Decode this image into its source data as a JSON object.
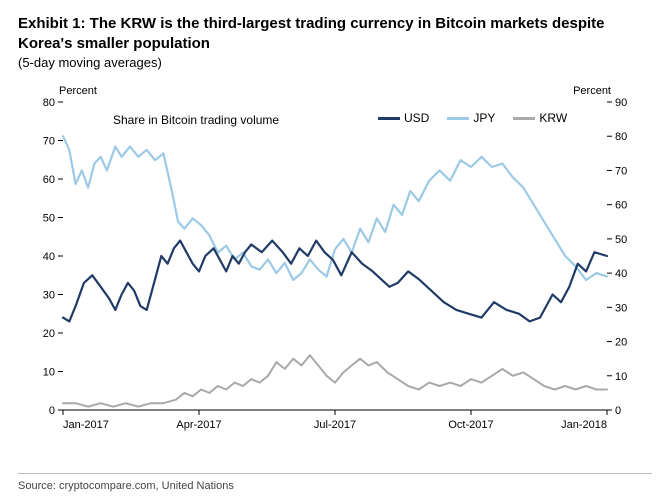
{
  "exhibit": {
    "title": "Exhibit 1: The KRW is the third-largest trading currency in Bitcoin markets despite Korea's smaller population",
    "subtitle": "(5-day moving averages)",
    "source": "Source: cryptocompare.com, United Nations"
  },
  "chart": {
    "type": "line",
    "background_color": "#ffffff",
    "grid_color": "#d9d9d9",
    "axis_color": "#000000",
    "left_axis": {
      "label": "Percent",
      "min": 0,
      "max": 80,
      "step": 10
    },
    "right_axis": {
      "label": "Percent",
      "min": 0,
      "max": 90,
      "step": 10
    },
    "x_axis": {
      "labels": [
        "Jan-2017",
        "Apr-2017",
        "Jul-2017",
        "Oct-2017",
        "Jan-2018"
      ]
    },
    "inside_label": "Share in Bitcoin trading volume",
    "legend": {
      "items": [
        {
          "key": "USD",
          "color": "#1f3b66"
        },
        {
          "key": "JPY",
          "color": "#9cc9e6"
        },
        {
          "key": "KRW",
          "color": "#a9a9a9"
        }
      ]
    },
    "series": {
      "USD": {
        "axis": "left",
        "color": "#1f3b66",
        "line_width": 2.2,
        "points": [
          [
            0,
            24
          ],
          [
            3,
            23
          ],
          [
            6,
            27
          ],
          [
            10,
            33
          ],
          [
            14,
            35
          ],
          [
            18,
            32
          ],
          [
            22,
            29
          ],
          [
            25,
            26
          ],
          [
            28,
            30
          ],
          [
            31,
            33
          ],
          [
            34,
            31
          ],
          [
            37,
            27
          ],
          [
            40,
            26
          ],
          [
            43,
            32
          ],
          [
            47,
            40
          ],
          [
            50,
            38
          ],
          [
            53,
            42
          ],
          [
            56,
            44
          ],
          [
            59,
            41
          ],
          [
            62,
            38
          ],
          [
            65,
            36
          ],
          [
            68,
            40
          ],
          [
            72,
            42
          ],
          [
            75,
            39
          ],
          [
            78,
            36
          ],
          [
            81,
            40
          ],
          [
            84,
            38
          ],
          [
            87,
            41
          ],
          [
            90,
            43
          ],
          [
            95,
            41
          ],
          [
            100,
            44
          ],
          [
            105,
            41
          ],
          [
            109,
            38
          ],
          [
            113,
            42
          ],
          [
            117,
            40
          ],
          [
            121,
            44
          ],
          [
            125,
            41
          ],
          [
            129,
            39
          ],
          [
            133,
            35
          ],
          [
            138,
            41
          ],
          [
            143,
            38
          ],
          [
            148,
            36
          ],
          [
            152,
            34
          ],
          [
            156,
            32
          ],
          [
            160,
            33
          ],
          [
            165,
            36
          ],
          [
            170,
            34
          ],
          [
            176,
            31
          ],
          [
            182,
            28
          ],
          [
            188,
            26
          ],
          [
            194,
            25
          ],
          [
            200,
            24
          ],
          [
            206,
            28
          ],
          [
            212,
            26
          ],
          [
            218,
            25
          ],
          [
            223,
            23
          ],
          [
            228,
            24
          ],
          [
            234,
            30
          ],
          [
            238,
            28
          ],
          [
            242,
            32
          ],
          [
            246,
            38
          ],
          [
            250,
            36
          ],
          [
            254,
            41
          ],
          [
            260,
            40
          ]
        ]
      },
      "JPY": {
        "axis": "right",
        "color": "#9cc9e6",
        "line_width": 2.2,
        "points": [
          [
            0,
            80
          ],
          [
            3,
            76
          ],
          [
            6,
            66
          ],
          [
            9,
            70
          ],
          [
            12,
            65
          ],
          [
            15,
            72
          ],
          [
            18,
            74
          ],
          [
            21,
            70
          ],
          [
            25,
            77
          ],
          [
            28,
            74
          ],
          [
            32,
            77
          ],
          [
            36,
            74
          ],
          [
            40,
            76
          ],
          [
            44,
            73
          ],
          [
            48,
            75
          ],
          [
            52,
            64
          ],
          [
            55,
            55
          ],
          [
            58,
            53
          ],
          [
            62,
            56
          ],
          [
            66,
            54
          ],
          [
            70,
            51
          ],
          [
            74,
            46
          ],
          [
            78,
            48
          ],
          [
            82,
            44
          ],
          [
            86,
            46
          ],
          [
            90,
            42
          ],
          [
            94,
            41
          ],
          [
            98,
            44
          ],
          [
            102,
            40
          ],
          [
            106,
            43
          ],
          [
            110,
            38
          ],
          [
            114,
            40
          ],
          [
            118,
            44
          ],
          [
            122,
            41
          ],
          [
            126,
            39
          ],
          [
            130,
            47
          ],
          [
            134,
            50
          ],
          [
            138,
            46
          ],
          [
            142,
            53
          ],
          [
            146,
            49
          ],
          [
            150,
            56
          ],
          [
            154,
            52
          ],
          [
            158,
            60
          ],
          [
            162,
            57
          ],
          [
            166,
            64
          ],
          [
            170,
            61
          ],
          [
            175,
            67
          ],
          [
            180,
            70
          ],
          [
            185,
            67
          ],
          [
            190,
            73
          ],
          [
            195,
            71
          ],
          [
            200,
            74
          ],
          [
            205,
            71
          ],
          [
            210,
            72
          ],
          [
            215,
            68
          ],
          [
            220,
            65
          ],
          [
            225,
            60
          ],
          [
            230,
            55
          ],
          [
            235,
            50
          ],
          [
            240,
            45
          ],
          [
            245,
            42
          ],
          [
            250,
            38
          ],
          [
            255,
            40
          ],
          [
            260,
            39
          ]
        ]
      },
      "KRW": {
        "axis": "right",
        "color": "#a9a9a9",
        "line_width": 2.0,
        "points": [
          [
            0,
            2
          ],
          [
            6,
            2
          ],
          [
            12,
            1
          ],
          [
            18,
            2
          ],
          [
            24,
            1
          ],
          [
            30,
            2
          ],
          [
            36,
            1
          ],
          [
            42,
            2
          ],
          [
            48,
            2
          ],
          [
            54,
            3
          ],
          [
            58,
            5
          ],
          [
            62,
            4
          ],
          [
            66,
            6
          ],
          [
            70,
            5
          ],
          [
            74,
            7
          ],
          [
            78,
            6
          ],
          [
            82,
            8
          ],
          [
            86,
            7
          ],
          [
            90,
            9
          ],
          [
            94,
            8
          ],
          [
            98,
            10
          ],
          [
            102,
            14
          ],
          [
            106,
            12
          ],
          [
            110,
            15
          ],
          [
            114,
            13
          ],
          [
            118,
            16
          ],
          [
            122,
            13
          ],
          [
            126,
            10
          ],
          [
            130,
            8
          ],
          [
            134,
            11
          ],
          [
            138,
            13
          ],
          [
            142,
            15
          ],
          [
            146,
            13
          ],
          [
            150,
            14
          ],
          [
            155,
            11
          ],
          [
            160,
            9
          ],
          [
            165,
            7
          ],
          [
            170,
            6
          ],
          [
            175,
            8
          ],
          [
            180,
            7
          ],
          [
            185,
            8
          ],
          [
            190,
            7
          ],
          [
            195,
            9
          ],
          [
            200,
            8
          ],
          [
            205,
            10
          ],
          [
            210,
            12
          ],
          [
            215,
            10
          ],
          [
            220,
            11
          ],
          [
            225,
            9
          ],
          [
            230,
            7
          ],
          [
            235,
            6
          ],
          [
            240,
            7
          ],
          [
            245,
            6
          ],
          [
            250,
            7
          ],
          [
            255,
            6
          ],
          [
            260,
            6
          ]
        ]
      }
    }
  }
}
